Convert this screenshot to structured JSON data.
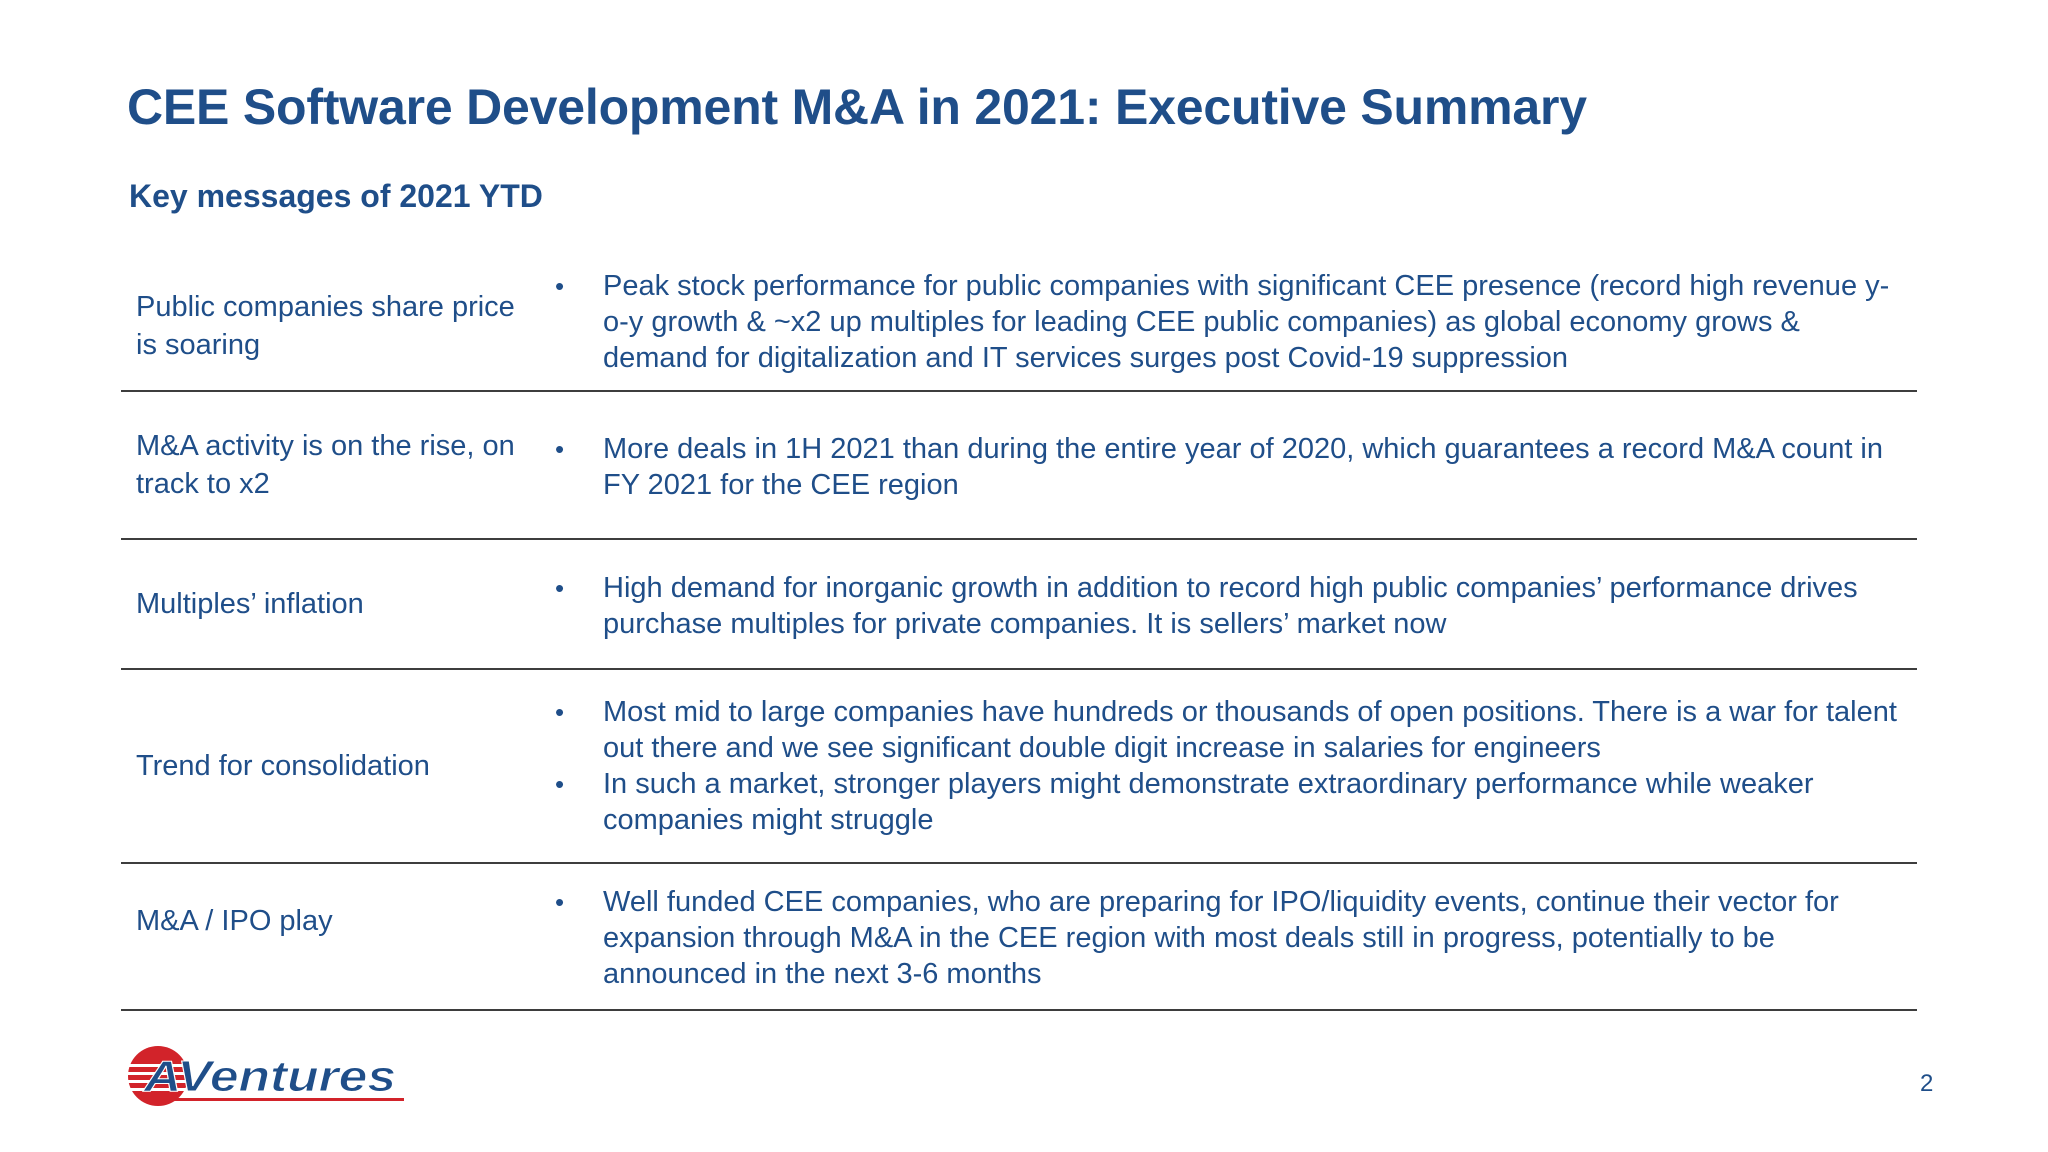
{
  "header": {
    "title": "CEE Software Development M&A in 2021: Executive Summary",
    "subtitle": "Key messages of 2021 YTD"
  },
  "rows": [
    {
      "label": "Public companies share price is soaring",
      "bullets": [
        "Peak stock performance for public companies with significant CEE presence (record high revenue y-o-y growth & ~x2 up multiples for leading CEE public companies) as global economy grows & demand for digitalization and IT services surges post Covid-19 suppression"
      ]
    },
    {
      "label": "M&A activity is on the rise, on track to x2",
      "bullets": [
        "More deals in 1H 2021 than during the entire year of 2020, which guarantees a record M&A count in FY 2021 for the CEE region"
      ]
    },
    {
      "label": "Multiples’ inflation",
      "bullets": [
        "High demand for inorganic growth in addition to record high public companies’ performance drives purchase multiples for private companies. It is sellers’ market now"
      ]
    },
    {
      "label": "Trend for consolidation",
      "bullets": [
        "Most mid to large companies have hundreds or thousands of open positions. There is a war for talent out there and we see significant double digit increase in salaries for engineers",
        "In such a market, stronger players might demonstrate extraordinary performance while weaker companies might struggle"
      ]
    },
    {
      "label": "M&A / IPO play",
      "bullets": [
        "Well funded CEE companies, who are preparing for IPO/liquidity events, continue their vector for expansion through M&A in the CEE region with most deals still in progress, potentially to be announced in the next 3-6 months"
      ]
    }
  ],
  "footer": {
    "logo_text": "AVentures",
    "page_number": "2"
  },
  "bullet_glyph": "•",
  "colors": {
    "text": "#1f4e89",
    "logo_red": "#d2232a",
    "rule": "#3d3d3d"
  }
}
